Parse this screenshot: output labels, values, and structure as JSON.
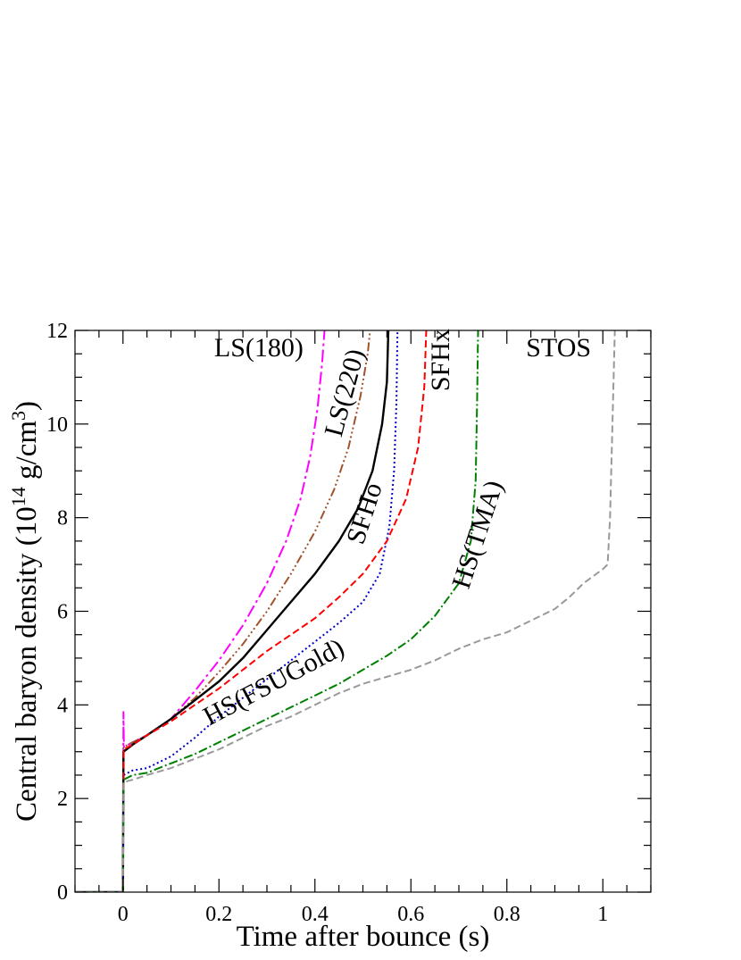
{
  "chart_data": {
    "type": "line",
    "title": "",
    "xlabel": "Time after bounce (s)",
    "ylabel_main": "Central baryon density (10",
    "ylabel_exp1": "14",
    "ylabel_unit": " g/cm",
    "ylabel_exp2": "3",
    "ylabel_close": ")",
    "xlim": [
      -0.1,
      1.1
    ],
    "ylim": [
      0,
      12
    ],
    "xticks": [
      0,
      0.2,
      0.4,
      0.6,
      0.8,
      1
    ],
    "xtick_labels": [
      "0",
      "0.2",
      "0.4",
      "0.6",
      "0.8",
      "1"
    ],
    "yticks": [
      0,
      2,
      4,
      6,
      8,
      10,
      12
    ],
    "ytick_labels": [
      "0",
      "2",
      "4",
      "6",
      "8",
      "10",
      "12"
    ],
    "grid": false,
    "series": [
      {
        "name": "LS(180)",
        "color": "#ff00ff",
        "dash": "14,4,3,4",
        "points": [
          [
            -0.1,
            0
          ],
          [
            -0.002,
            0
          ],
          [
            0,
            0
          ],
          [
            0.001,
            3.85
          ],
          [
            0.002,
            3.1
          ],
          [
            0.02,
            3.2
          ],
          [
            0.05,
            3.35
          ],
          [
            0.1,
            3.7
          ],
          [
            0.15,
            4.3
          ],
          [
            0.2,
            4.95
          ],
          [
            0.25,
            5.7
          ],
          [
            0.3,
            6.6
          ],
          [
            0.34,
            7.5
          ],
          [
            0.37,
            8.4
          ],
          [
            0.39,
            9.3
          ],
          [
            0.405,
            10.3
          ],
          [
            0.415,
            11.3
          ],
          [
            0.42,
            12
          ]
        ]
      },
      {
        "name": "LS(220)",
        "color": "#a0522d",
        "dash": "10,3,2,3,2,3,2,3",
        "points": [
          [
            -0.1,
            0
          ],
          [
            0,
            0
          ],
          [
            0.001,
            3.1
          ],
          [
            0.02,
            3.2
          ],
          [
            0.05,
            3.35
          ],
          [
            0.1,
            3.7
          ],
          [
            0.15,
            4.15
          ],
          [
            0.2,
            4.7
          ],
          [
            0.25,
            5.3
          ],
          [
            0.3,
            6.0
          ],
          [
            0.35,
            6.8
          ],
          [
            0.4,
            7.7
          ],
          [
            0.44,
            8.6
          ],
          [
            0.47,
            9.5
          ],
          [
            0.495,
            10.6
          ],
          [
            0.51,
            11.5
          ],
          [
            0.515,
            12
          ]
        ]
      },
      {
        "name": "SFHo",
        "color": "#000000",
        "dash": "",
        "points": [
          [
            -0.1,
            0
          ],
          [
            0,
            0
          ],
          [
            0.001,
            3.0
          ],
          [
            0.02,
            3.15
          ],
          [
            0.05,
            3.35
          ],
          [
            0.1,
            3.7
          ],
          [
            0.15,
            4.1
          ],
          [
            0.2,
            4.5
          ],
          [
            0.25,
            5.0
          ],
          [
            0.3,
            5.6
          ],
          [
            0.35,
            6.2
          ],
          [
            0.4,
            6.8
          ],
          [
            0.45,
            7.5
          ],
          [
            0.49,
            8.2
          ],
          [
            0.52,
            9.0
          ],
          [
            0.54,
            10.0
          ],
          [
            0.55,
            10.9
          ],
          [
            0.553,
            12
          ]
        ]
      },
      {
        "name": "HS(FSUGold)",
        "color": "#0000cd",
        "dash": "2,3",
        "points": [
          [
            -0.1,
            0
          ],
          [
            0,
            0
          ],
          [
            0.001,
            2.5
          ],
          [
            0.02,
            2.6
          ],
          [
            0.05,
            2.65
          ],
          [
            0.1,
            2.9
          ],
          [
            0.15,
            3.3
          ],
          [
            0.2,
            3.75
          ],
          [
            0.25,
            4.15
          ],
          [
            0.3,
            4.55
          ],
          [
            0.35,
            4.95
          ],
          [
            0.4,
            5.35
          ],
          [
            0.45,
            5.75
          ],
          [
            0.5,
            6.2
          ],
          [
            0.535,
            6.8
          ],
          [
            0.555,
            7.8
          ],
          [
            0.565,
            9.0
          ],
          [
            0.57,
            10.5
          ],
          [
            0.572,
            12
          ]
        ]
      },
      {
        "name": "SFHx",
        "color": "#ff0000",
        "dash": "8,4",
        "points": [
          [
            -0.1,
            0
          ],
          [
            0,
            0
          ],
          [
            0.001,
            3.05
          ],
          [
            0.02,
            3.15
          ],
          [
            0.05,
            3.35
          ],
          [
            0.1,
            3.65
          ],
          [
            0.15,
            4.0
          ],
          [
            0.2,
            4.35
          ],
          [
            0.25,
            4.75
          ],
          [
            0.3,
            5.15
          ],
          [
            0.35,
            5.5
          ],
          [
            0.4,
            5.85
          ],
          [
            0.45,
            6.3
          ],
          [
            0.5,
            6.8
          ],
          [
            0.55,
            7.5
          ],
          [
            0.59,
            8.4
          ],
          [
            0.615,
            9.5
          ],
          [
            0.628,
            10.8
          ],
          [
            0.632,
            12
          ]
        ]
      },
      {
        "name": "HS(TMA)",
        "color": "#008000",
        "dash": "10,3,2,3",
        "points": [
          [
            -0.1,
            0
          ],
          [
            0,
            0
          ],
          [
            0.001,
            2.4
          ],
          [
            0.02,
            2.5
          ],
          [
            0.05,
            2.55
          ],
          [
            0.1,
            2.75
          ],
          [
            0.15,
            2.95
          ],
          [
            0.2,
            3.2
          ],
          [
            0.25,
            3.45
          ],
          [
            0.3,
            3.7
          ],
          [
            0.35,
            3.95
          ],
          [
            0.4,
            4.2
          ],
          [
            0.45,
            4.45
          ],
          [
            0.5,
            4.75
          ],
          [
            0.55,
            5.05
          ],
          [
            0.6,
            5.4
          ],
          [
            0.65,
            5.9
          ],
          [
            0.7,
            6.6
          ],
          [
            0.725,
            7.5
          ],
          [
            0.735,
            8.8
          ],
          [
            0.738,
            10.5
          ],
          [
            0.74,
            12
          ]
        ]
      },
      {
        "name": "STOS",
        "color": "#999999",
        "dash": "8,4",
        "points": [
          [
            -0.1,
            0
          ],
          [
            0,
            0
          ],
          [
            0.001,
            2.35
          ],
          [
            0.02,
            2.4
          ],
          [
            0.05,
            2.5
          ],
          [
            0.1,
            2.65
          ],
          [
            0.15,
            2.85
          ],
          [
            0.2,
            3.05
          ],
          [
            0.25,
            3.3
          ],
          [
            0.3,
            3.55
          ],
          [
            0.35,
            3.75
          ],
          [
            0.4,
            4.0
          ],
          [
            0.45,
            4.25
          ],
          [
            0.5,
            4.45
          ],
          [
            0.55,
            4.6
          ],
          [
            0.6,
            4.75
          ],
          [
            0.65,
            4.95
          ],
          [
            0.7,
            5.2
          ],
          [
            0.75,
            5.4
          ],
          [
            0.8,
            5.55
          ],
          [
            0.85,
            5.8
          ],
          [
            0.9,
            6.05
          ],
          [
            0.93,
            6.3
          ],
          [
            0.96,
            6.6
          ],
          [
            1.0,
            6.9
          ],
          [
            1.01,
            7.0
          ],
          [
            1.015,
            8.0
          ],
          [
            1.02,
            10.0
          ],
          [
            1.025,
            12
          ]
        ]
      }
    ],
    "annotations": [
      {
        "text": "LS(180)",
        "x": 0.19,
        "y": 11.45,
        "rotate": 0
      },
      {
        "text": "LS(220)",
        "x": 0.455,
        "y": 9.7,
        "rotate": -75
      },
      {
        "text": "SFHo",
        "x": 0.5,
        "y": 7.4,
        "rotate": -72
      },
      {
        "text": "SFHx",
        "x": 0.68,
        "y": 10.7,
        "rotate": -90
      },
      {
        "text": "STOS",
        "x": 0.84,
        "y": 11.45,
        "rotate": 0
      },
      {
        "text": "HS(TMA)",
        "x": 0.72,
        "y": 6.45,
        "rotate": -72
      },
      {
        "text": "HS(FSUGold)",
        "x": 0.18,
        "y": 3.55,
        "rotate": -28
      }
    ]
  }
}
